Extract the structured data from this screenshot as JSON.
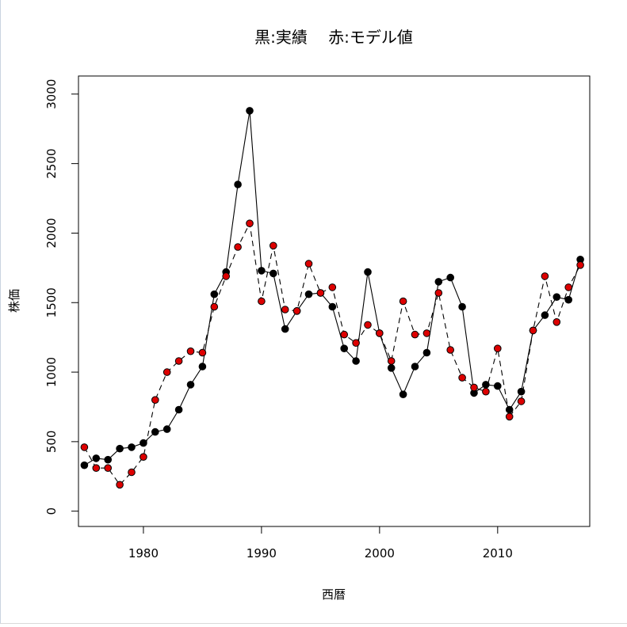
{
  "chart_data": {
    "type": "line",
    "title": "黒:実績　 赤:モデル値",
    "xlabel": "西暦",
    "ylabel": "株価",
    "xlim": [
      1974.5,
      2017.8
    ],
    "ylim": [
      -110,
      3130
    ],
    "x_ticks": [
      1980,
      1990,
      2000,
      2010
    ],
    "y_ticks": [
      0,
      500,
      1000,
      1500,
      2000,
      2500,
      3000
    ],
    "x_tick_labels": [
      "1980",
      "1990",
      "2000",
      "2010"
    ],
    "y_tick_labels": [
      "0",
      "500",
      "1000",
      "1500",
      "2000",
      "2500",
      "3000"
    ],
    "grid": false,
    "x": [
      1975,
      1976,
      1977,
      1978,
      1979,
      1980,
      1981,
      1982,
      1983,
      1984,
      1985,
      1986,
      1987,
      1988,
      1989,
      1990,
      1991,
      1992,
      1993,
      1994,
      1995,
      1996,
      1997,
      1998,
      1999,
      2000,
      2001,
      2002,
      2003,
      2004,
      2005,
      2006,
      2007,
      2008,
      2009,
      2010,
      2011,
      2012,
      2013,
      2014,
      2015,
      2016,
      2017
    ],
    "series": [
      {
        "name": "実績",
        "color": "#000000",
        "line_style": "solid",
        "values": [
          330,
          380,
          370,
          450,
          460,
          490,
          570,
          590,
          730,
          910,
          1040,
          1560,
          1720,
          2350,
          2880,
          1730,
          1710,
          1310,
          1440,
          1560,
          1570,
          1470,
          1170,
          1080,
          1720,
          1280,
          1030,
          840,
          1040,
          1140,
          1650,
          1680,
          1470,
          850,
          910,
          900,
          730,
          860,
          1300,
          1410,
          1540,
          1520,
          1810
        ]
      },
      {
        "name": "モデル値",
        "color": "#dd0000",
        "line_style": "dashed",
        "values": [
          460,
          310,
          310,
          190,
          280,
          390,
          800,
          1000,
          1080,
          1150,
          1140,
          1470,
          1690,
          1900,
          2070,
          1510,
          1910,
          1450,
          1440,
          1780,
          1570,
          1610,
          1270,
          1210,
          1340,
          1280,
          1080,
          1510,
          1270,
          1280,
          1570,
          1160,
          960,
          890,
          860,
          1170,
          680,
          790,
          1300,
          1690,
          1360,
          1610,
          1770
        ]
      }
    ]
  }
}
